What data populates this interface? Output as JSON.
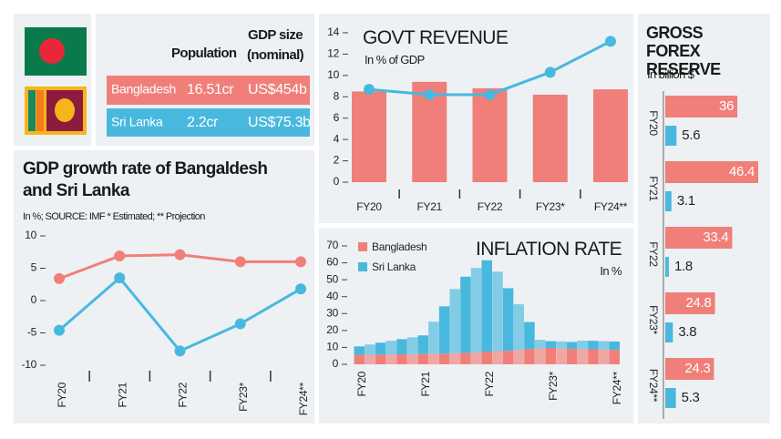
{
  "table": {
    "header": [
      "Population",
      "GDP size (nominal)"
    ],
    "rows": [
      [
        "Bangladesh",
        "16.51cr",
        "US$454b"
      ],
      [
        "Sri Lanka",
        "2.2cr",
        "US$75.3b"
      ]
    ]
  },
  "chart_data": [
    {
      "type": "line",
      "title": "GDP growth rate of Bangaldesh and Sri Lanka",
      "subtitle": "In %; SOURCE: IMF * Estimated; ** Projection",
      "categories": [
        "FY20",
        "FY21",
        "FY22",
        "FY23*",
        "FY24**"
      ],
      "series": [
        {
          "color": "#f07f7a",
          "values": [
            3.4,
            6.9,
            7.1,
            6.0,
            6.0
          ]
        },
        {
          "color": "#49b8de",
          "values": [
            -4.6,
            3.5,
            -7.8,
            -3.6,
            1.8
          ]
        }
      ],
      "ylim": [
        -10,
        10
      ],
      "yticks": [
        -10,
        -5,
        0,
        5,
        10
      ]
    },
    {
      "type": "combo",
      "title": "GOVT REVENUE",
      "subtitle": "In % of GDP",
      "categories": [
        "FY20",
        "FY21",
        "FY22",
        "FY23*",
        "FY24**"
      ],
      "series": [
        {
          "kind": "bar",
          "color": "#f07f7a",
          "values": [
            8.5,
            9.4,
            8.8,
            8.2,
            8.7
          ]
        },
        {
          "kind": "line",
          "color": "#49b8de",
          "values": [
            8.7,
            8.2,
            8.2,
            10.3,
            13.2
          ]
        }
      ],
      "ylim": [
        0,
        14
      ],
      "yticks": [
        0,
        2,
        4,
        6,
        8,
        10,
        12,
        14
      ]
    },
    {
      "type": "stacked",
      "title": "INFLATION RATE",
      "subtitle": "In %",
      "categories": [
        "FY20",
        null,
        null,
        null,
        null,
        null,
        "FY21",
        null,
        null,
        null,
        null,
        null,
        "FY22",
        null,
        null,
        null,
        null,
        null,
        "FY23*",
        null,
        null,
        null,
        null,
        null,
        "FY24**"
      ],
      "series": [
        {
          "name": "Bangladesh",
          "color": "#f07f7a",
          "values": [
            5.6,
            5.7,
            5.8,
            5.9,
            5.9,
            6.0,
            6.1,
            6.2,
            6.3,
            6.5,
            6.8,
            7.0,
            7.5,
            7.8,
            8.0,
            8.5,
            9.0,
            9.5,
            9.7,
            9.5,
            9.2,
            9.0,
            8.9,
            8.7,
            8.5
          ]
        },
        {
          "name": "Sri Lanka",
          "color": "#49b8de",
          "values": [
            5,
            6,
            7,
            8,
            9,
            10,
            11,
            19,
            28,
            38,
            45,
            50,
            54,
            47,
            37,
            27,
            16,
            5,
            4,
            4,
            4,
            5,
            5,
            5,
            5
          ]
        }
      ],
      "ylim": [
        0,
        70
      ],
      "yticks": [
        0,
        10,
        20,
        30,
        40,
        50,
        60,
        70
      ]
    },
    {
      "type": "hbar",
      "title": "GROSS FOREX RESERVE",
      "subtitle": "In billion $",
      "categories": [
        "FY20",
        "FY21",
        "FY22",
        "FY23*",
        "FY24**"
      ],
      "series": [
        {
          "color": "#f07f7a",
          "values": [
            36,
            46.4,
            33.4,
            24.8,
            24.3
          ]
        },
        {
          "color": "#49b8de",
          "values": [
            5.6,
            3.1,
            1.8,
            3.8,
            5.3
          ]
        }
      ]
    }
  ]
}
